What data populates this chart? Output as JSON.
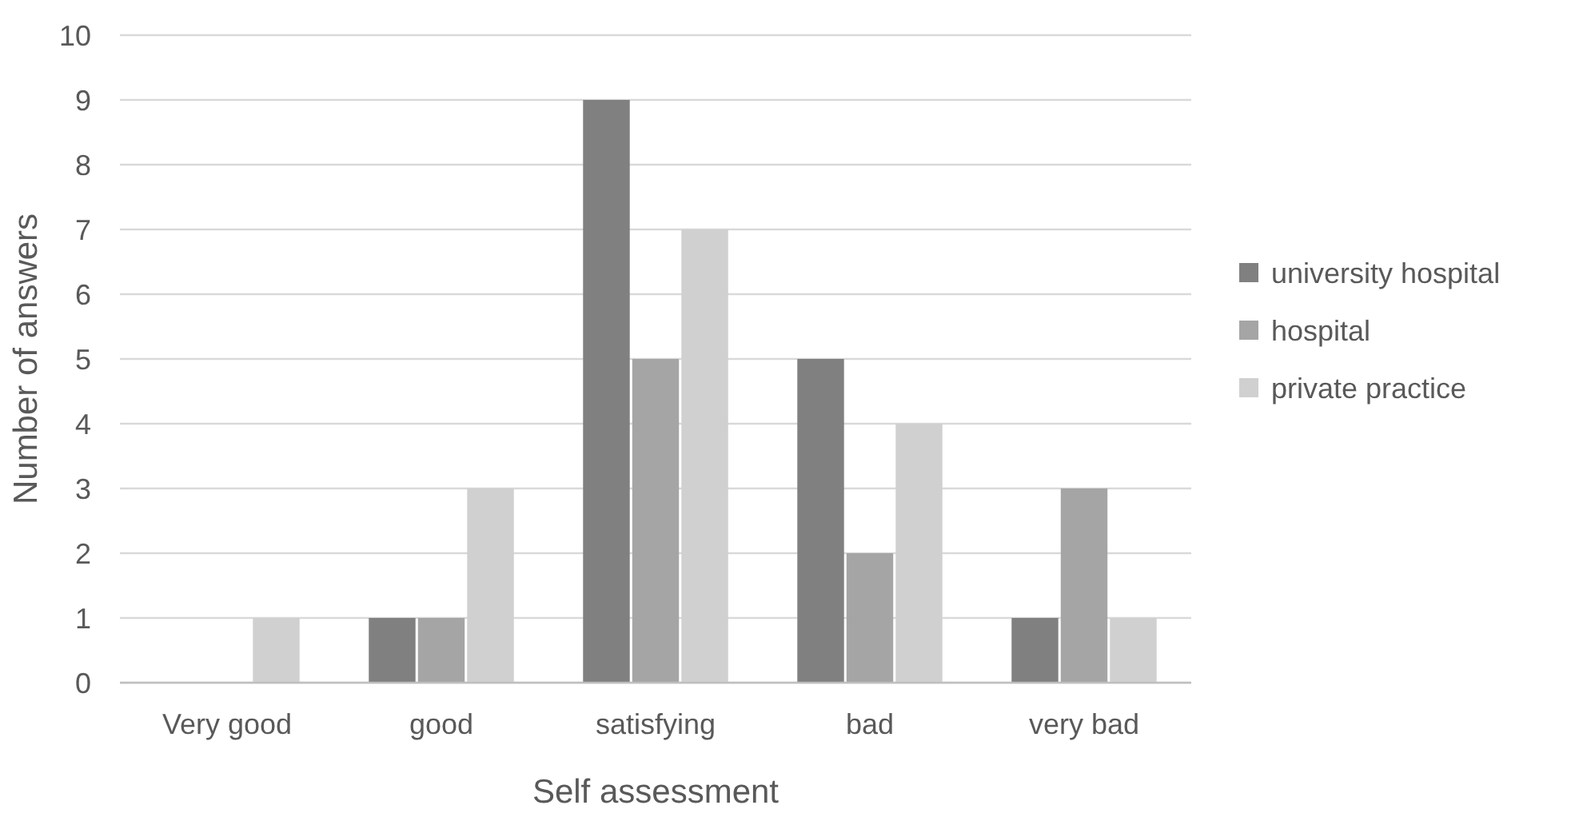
{
  "chart_data": {
    "type": "bar",
    "xlabel": "Self assessment",
    "ylabel": "Number of answers",
    "categories": [
      "Very good",
      "good",
      "satisfying",
      "bad",
      "very bad"
    ],
    "series": [
      {
        "name": "university hospital",
        "color": "#808080",
        "values": [
          0,
          1,
          9,
          5,
          1
        ]
      },
      {
        "name": "hospital",
        "color": "#a5a5a5",
        "values": [
          0,
          1,
          5,
          2,
          3
        ]
      },
      {
        "name": "private practice",
        "color": "#d0d0d0",
        "values": [
          1,
          3,
          7,
          4,
          1
        ]
      }
    ],
    "ylim": [
      0,
      10
    ],
    "yticks": [
      0,
      1,
      2,
      3,
      4,
      5,
      6,
      7,
      8,
      9,
      10
    ],
    "grid": "y",
    "legend": "right"
  }
}
